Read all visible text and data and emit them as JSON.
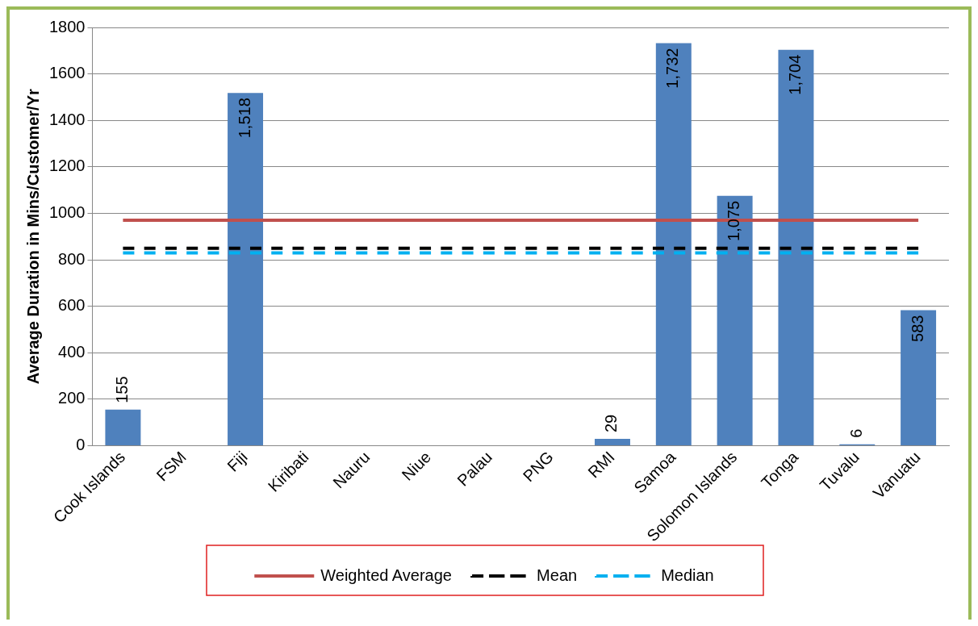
{
  "chart_data": {
    "type": "bar",
    "ylabel": "Average Duration in Mins/Customer/Yr",
    "categories": [
      "Cook Islands",
      "FSM",
      "Fiji",
      "Kiribati",
      "Nauru",
      "Niue",
      "Palau",
      "PNG",
      "RMI",
      "Samoa",
      "Solomon Islands",
      "Tonga",
      "Tuvalu",
      "Vanuatu"
    ],
    "series": [
      {
        "color": "#4f81bd",
        "values": [
          155,
          null,
          1518,
          null,
          null,
          null,
          null,
          null,
          29,
          1732,
          1075,
          1704,
          6,
          583
        ],
        "value_labels": [
          "155",
          null,
          "1,518",
          null,
          null,
          null,
          null,
          null,
          "29",
          "1,732",
          "1,075",
          "1,704",
          "6",
          "583"
        ]
      },
      {
        "type": "line",
        "name": "Weighted Average",
        "color": "#c0504d",
        "line_style": "solid",
        "values": [
          970,
          970,
          970,
          970,
          970,
          970,
          970,
          970,
          970,
          970,
          970,
          970,
          970,
          970
        ]
      },
      {
        "type": "line",
        "name": "Mean",
        "color": "#000000",
        "line_style": "dashed",
        "values": [
          850,
          850,
          850,
          850,
          850,
          850,
          850,
          850,
          850,
          850,
          850,
          850,
          850,
          850
        ]
      },
      {
        "type": "line",
        "name": "Median",
        "color": "#00b0f0",
        "line_style": "dashed",
        "values": [
          830,
          830,
          830,
          830,
          830,
          830,
          830,
          830,
          830,
          830,
          830,
          830,
          830,
          830
        ]
      }
    ],
    "ylim": [
      0,
      1800
    ],
    "yticks": [
      0,
      200,
      400,
      600,
      800,
      1000,
      1200,
      1400,
      1600,
      1800
    ],
    "grid": "y",
    "legend": "bottom",
    "marker": "none"
  }
}
